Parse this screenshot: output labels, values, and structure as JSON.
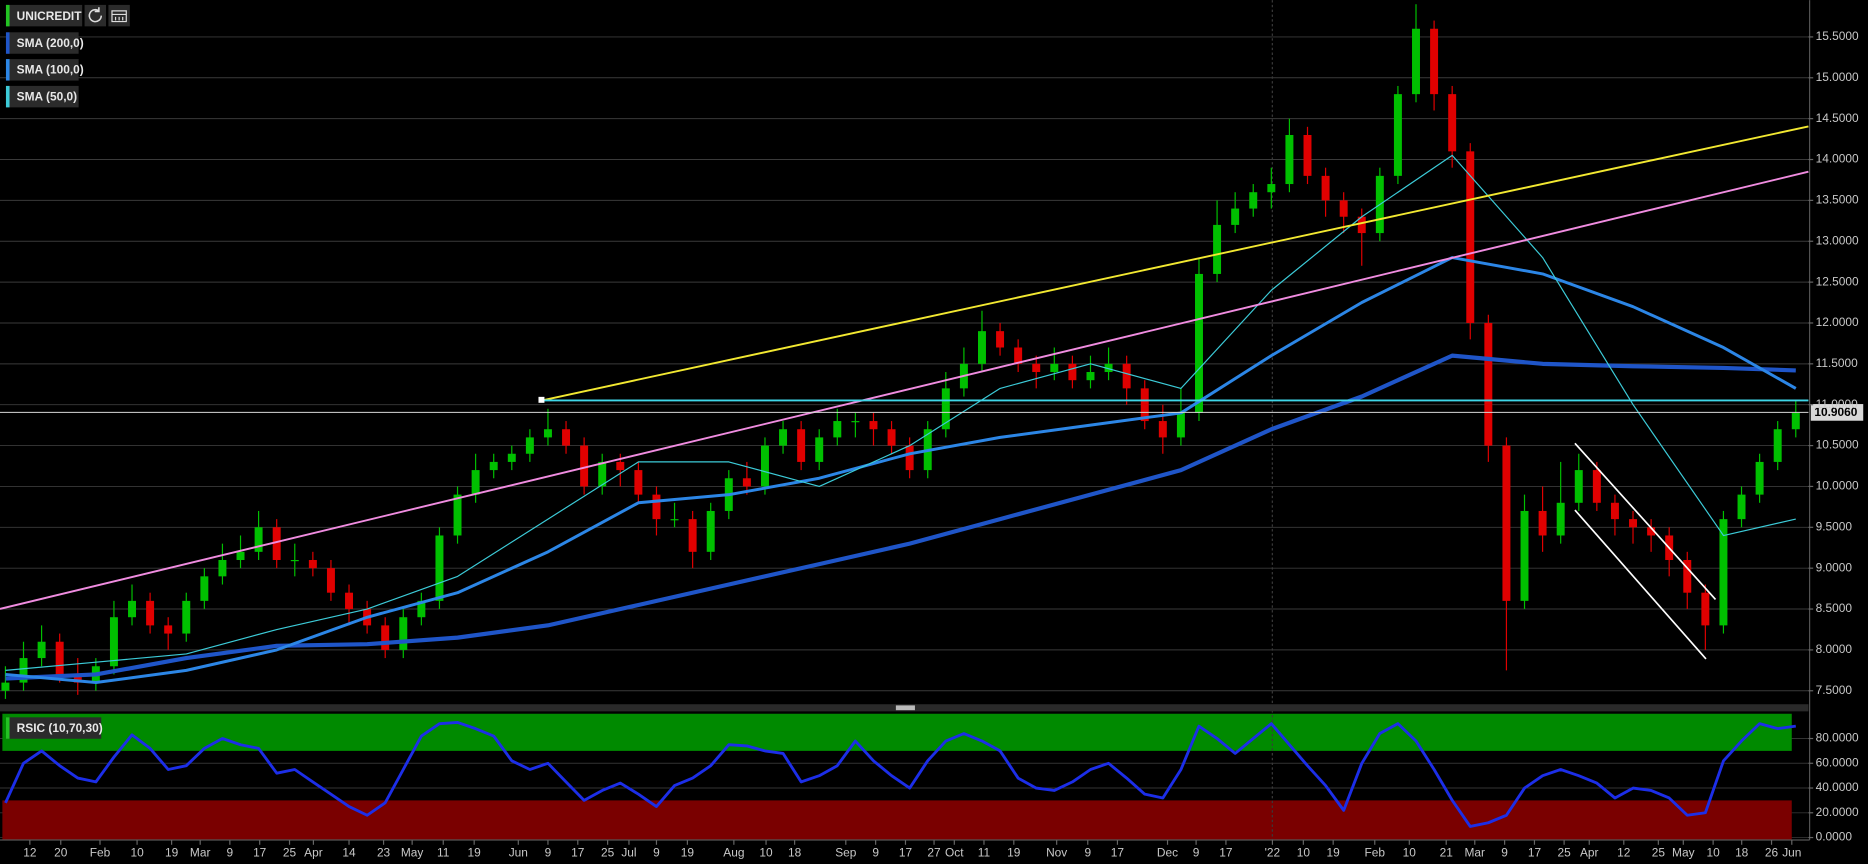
{
  "chart_data": [
    {
      "type": "candlestick",
      "title": "UNICREDIT",
      "xlim": [
        -0.3,
        99.7
      ],
      "ylim": [
        7.35,
        15.95
      ],
      "yticks": [
        {
          "value": 7.5,
          "label": "7.5000"
        },
        {
          "value": 8,
          "label": "8.0000"
        },
        {
          "value": 8.5,
          "label": "8.5000"
        },
        {
          "value": 9,
          "label": "9.0000"
        },
        {
          "value": 9.5,
          "label": "9.5000"
        },
        {
          "value": 10,
          "label": "10.0000"
        },
        {
          "value": 10.5,
          "label": "10.5000"
        },
        {
          "value": 11,
          "label": "11.0000"
        },
        {
          "value": 11.5,
          "label": "11.5000"
        },
        {
          "value": 12,
          "label": "12.0000"
        },
        {
          "value": 12.5,
          "label": "12.5000"
        },
        {
          "value": 13,
          "label": "13.0000"
        },
        {
          "value": 13.5,
          "label": "13.5000"
        },
        {
          "value": 14,
          "label": "14.0000"
        },
        {
          "value": 14.5,
          "label": "14.5000"
        },
        {
          "value": 15,
          "label": "15.0000"
        },
        {
          "value": 15.5,
          "label": "15.5000"
        }
      ],
      "xticks": [
        {
          "value": 1.35,
          "label": "12"
        },
        {
          "value": 3.06,
          "label": "20"
        },
        {
          "value": 5.23,
          "label": "Feb"
        },
        {
          "value": 7.28,
          "label": "10"
        },
        {
          "value": 9.19,
          "label": "19"
        },
        {
          "value": 10.77,
          "label": "Mar"
        },
        {
          "value": 12.41,
          "label": "9"
        },
        {
          "value": 14.06,
          "label": "17"
        },
        {
          "value": 15.71,
          "label": "25"
        },
        {
          "value": 17.03,
          "label": "Apr"
        },
        {
          "value": 19.0,
          "label": "14"
        },
        {
          "value": 20.91,
          "label": "23"
        },
        {
          "value": 22.49,
          "label": "May"
        },
        {
          "value": 24.21,
          "label": "11"
        },
        {
          "value": 25.92,
          "label": "19"
        },
        {
          "value": 28.36,
          "label": "Jun"
        },
        {
          "value": 30.0,
          "label": "9"
        },
        {
          "value": 31.65,
          "label": "17"
        },
        {
          "value": 33.3,
          "label": "25"
        },
        {
          "value": 34.48,
          "label": "Jul"
        },
        {
          "value": 36.0,
          "label": "9"
        },
        {
          "value": 37.71,
          "label": "19"
        },
        {
          "value": 40.28,
          "label": "Aug"
        },
        {
          "value": 42.06,
          "label": "10"
        },
        {
          "value": 43.64,
          "label": "18"
        },
        {
          "value": 46.47,
          "label": "Sep"
        },
        {
          "value": 48.12,
          "label": "9"
        },
        {
          "value": 49.77,
          "label": "17"
        },
        {
          "value": 51.35,
          "label": "27"
        },
        {
          "value": 52.47,
          "label": "Oct"
        },
        {
          "value": 54.11,
          "label": "11"
        },
        {
          "value": 55.76,
          "label": "19"
        },
        {
          "value": 58.13,
          "label": "Nov"
        },
        {
          "value": 59.85,
          "label": "9"
        },
        {
          "value": 61.49,
          "label": "17"
        },
        {
          "value": 64.26,
          "label": "Dec"
        },
        {
          "value": 65.84,
          "label": "9"
        },
        {
          "value": 67.49,
          "label": "17"
        },
        {
          "value": 70.06,
          "label": "'22"
        },
        {
          "value": 71.77,
          "label": "10"
        },
        {
          "value": 73.42,
          "label": "19"
        },
        {
          "value": 75.72,
          "label": "Feb"
        },
        {
          "value": 77.63,
          "label": "10"
        },
        {
          "value": 79.67,
          "label": "21"
        },
        {
          "value": 81.25,
          "label": "Mar"
        },
        {
          "value": 82.9,
          "label": "9"
        },
        {
          "value": 84.55,
          "label": "17"
        },
        {
          "value": 86.19,
          "label": "25"
        },
        {
          "value": 87.58,
          "label": "Apr"
        },
        {
          "value": 89.49,
          "label": "12"
        },
        {
          "value": 91.4,
          "label": "25"
        },
        {
          "value": 92.78,
          "label": "May"
        },
        {
          "value": 94.43,
          "label": "10"
        },
        {
          "value": 96.01,
          "label": "18"
        },
        {
          "value": 97.66,
          "label": "26"
        },
        {
          "value": 98.78,
          "label": "Jun"
        }
      ],
      "grid": true,
      "up_color": "#00c000",
      "down_color": "#e00000",
      "open": [
        7.5,
        7.6,
        7.9,
        8.1,
        7.7,
        7.6,
        7.8,
        8.4,
        8.6,
        8.3,
        8.2,
        8.6,
        8.9,
        9.1,
        9.2,
        9.5,
        9.1,
        9.1,
        9.0,
        8.7,
        8.5,
        8.3,
        8.0,
        8.4,
        8.6,
        9.4,
        9.9,
        10.2,
        10.3,
        10.4,
        10.6,
        10.7,
        10.5,
        10.0,
        10.3,
        10.2,
        9.9,
        9.6,
        9.6,
        9.2,
        9.7,
        10.1,
        10.0,
        10.5,
        10.7,
        10.3,
        10.6,
        10.8,
        10.8,
        10.7,
        10.5,
        10.2,
        10.7,
        11.2,
        11.5,
        11.9,
        11.7,
        11.5,
        11.4,
        11.5,
        11.3,
        11.4,
        11.5,
        11.2,
        10.8,
        10.6,
        10.9,
        12.6,
        13.2,
        13.4,
        13.6,
        13.7,
        14.3,
        13.8,
        13.5,
        13.3,
        13.1,
        13.8,
        14.8,
        15.6,
        14.8,
        14.1,
        12.0,
        10.5,
        8.6,
        9.7,
        9.4,
        9.8,
        10.2,
        9.8,
        9.6,
        9.5,
        9.4,
        9.1,
        8.7,
        8.3,
        9.6,
        9.9,
        10.3,
        10.7
      ],
      "high": [
        7.8,
        8.1,
        8.3,
        8.2,
        7.9,
        7.9,
        8.6,
        8.8,
        8.7,
        8.4,
        8.7,
        9.0,
        9.3,
        9.4,
        9.7,
        9.6,
        9.3,
        9.2,
        9.1,
        8.8,
        8.6,
        8.4,
        8.5,
        8.7,
        9.5,
        10.0,
        10.4,
        10.4,
        10.5,
        10.7,
        10.95,
        10.8,
        10.6,
        10.4,
        10.4,
        10.3,
        10.0,
        9.8,
        9.7,
        9.8,
        10.2,
        10.3,
        10.6,
        10.8,
        10.8,
        10.7,
        10.95,
        10.9,
        10.9,
        10.8,
        10.6,
        10.8,
        11.4,
        11.7,
        12.15,
        12.0,
        11.8,
        11.6,
        11.7,
        11.6,
        11.6,
        11.7,
        11.6,
        11.3,
        11.0,
        11.2,
        12.8,
        13.5,
        13.6,
        13.7,
        13.9,
        14.5,
        14.4,
        13.9,
        13.6,
        13.4,
        13.9,
        14.9,
        15.9,
        15.7,
        14.9,
        14.2,
        12.1,
        10.6,
        9.9,
        10.0,
        10.3,
        10.4,
        10.3,
        9.9,
        9.7,
        9.6,
        9.5,
        9.2,
        8.8,
        9.7,
        10.0,
        10.4,
        10.8,
        11.05
      ],
      "low": [
        7.4,
        7.5,
        7.8,
        7.6,
        7.45,
        7.5,
        7.7,
        8.3,
        8.2,
        8.0,
        8.1,
        8.5,
        8.8,
        9.0,
        9.1,
        9.0,
        8.9,
        8.9,
        8.6,
        8.3,
        8.2,
        7.9,
        7.9,
        8.3,
        8.5,
        9.3,
        9.8,
        10.1,
        10.2,
        10.3,
        10.5,
        10.4,
        9.9,
        9.9,
        10.0,
        9.8,
        9.4,
        9.5,
        9.0,
        9.1,
        9.6,
        9.9,
        9.9,
        10.4,
        10.2,
        10.2,
        10.5,
        10.6,
        10.5,
        10.4,
        10.1,
        10.1,
        10.6,
        11.1,
        11.4,
        11.6,
        11.4,
        11.2,
        11.3,
        11.2,
        11.2,
        11.3,
        11.0,
        10.7,
        10.4,
        10.5,
        10.8,
        12.5,
        13.1,
        13.3,
        13.4,
        13.6,
        13.7,
        13.3,
        13.1,
        12.7,
        13.0,
        13.7,
        14.7,
        14.6,
        13.9,
        11.8,
        10.3,
        7.75,
        8.5,
        9.2,
        9.3,
        9.7,
        9.7,
        9.4,
        9.3,
        9.2,
        8.9,
        8.5,
        8.0,
        8.2,
        9.5,
        9.8,
        10.2,
        10.6
      ],
      "close": [
        7.6,
        7.9,
        8.1,
        7.7,
        7.6,
        7.8,
        8.4,
        8.6,
        8.3,
        8.2,
        8.6,
        8.9,
        9.1,
        9.2,
        9.5,
        9.1,
        9.1,
        9.0,
        8.7,
        8.5,
        8.3,
        8.0,
        8.4,
        8.6,
        9.4,
        9.9,
        10.2,
        10.3,
        10.4,
        10.6,
        10.7,
        10.5,
        10.0,
        10.3,
        10.2,
        9.9,
        9.6,
        9.6,
        9.2,
        9.7,
        10.1,
        10.0,
        10.5,
        10.7,
        10.3,
        10.6,
        10.8,
        10.8,
        10.7,
        10.5,
        10.2,
        10.7,
        11.2,
        11.5,
        11.9,
        11.7,
        11.5,
        11.4,
        11.5,
        11.3,
        11.4,
        11.5,
        11.2,
        10.8,
        10.6,
        10.9,
        12.6,
        13.2,
        13.4,
        13.6,
        13.7,
        14.3,
        13.8,
        13.5,
        13.3,
        13.1,
        13.8,
        14.8,
        15.6,
        14.8,
        14.1,
        12.0,
        10.5,
        8.6,
        9.7,
        9.4,
        9.8,
        10.2,
        9.8,
        9.6,
        9.5,
        9.4,
        9.1,
        8.7,
        8.3,
        9.6,
        9.9,
        10.3,
        10.7,
        10.9
      ],
      "last_price": {
        "value": 10.906,
        "label": "10.9060"
      },
      "indicators": [
        {
          "name": "SMA (200,0)",
          "color": "#1f55c8",
          "width": 3.5,
          "x": [
            0,
            5,
            10,
            15,
            20,
            25,
            30,
            35,
            40,
            45,
            50,
            55,
            60,
            65,
            70,
            75,
            80,
            85,
            90,
            95,
            99
          ],
          "values": [
            7.65,
            7.7,
            7.9,
            8.05,
            8.07,
            8.15,
            8.3,
            8.55,
            8.8,
            9.05,
            9.3,
            9.6,
            9.9,
            10.2,
            10.7,
            11.1,
            11.6,
            11.5,
            11.47,
            11.45,
            11.42
          ]
        },
        {
          "name": "SMA (100,0)",
          "color": "#2c86e6",
          "width": 2.5,
          "x": [
            0,
            5,
            10,
            15,
            20,
            25,
            30,
            35,
            40,
            45,
            50,
            55,
            60,
            65,
            70,
            75,
            80,
            85,
            90,
            95,
            99
          ],
          "values": [
            7.7,
            7.6,
            7.75,
            8.0,
            8.4,
            8.7,
            9.2,
            9.8,
            9.9,
            10.1,
            10.4,
            10.6,
            10.75,
            10.9,
            11.6,
            12.25,
            12.8,
            12.6,
            12.2,
            11.7,
            11.2
          ]
        },
        {
          "name": "SMA (50,0)",
          "color": "#3ccbd8",
          "width": 1,
          "x": [
            0,
            5,
            10,
            15,
            20,
            25,
            30,
            35,
            40,
            45,
            50,
            55,
            60,
            65,
            70,
            75,
            80,
            85,
            90,
            95,
            99
          ],
          "values": [
            7.75,
            7.85,
            7.95,
            8.25,
            8.5,
            8.9,
            9.6,
            10.3,
            10.3,
            10.0,
            10.5,
            11.2,
            11.5,
            11.2,
            12.4,
            13.3,
            14.05,
            12.8,
            11.0,
            9.4,
            9.6
          ]
        }
      ]
    },
    {
      "type": "line",
      "title": "RSIC (10,70,30)",
      "color": "#1c2ee8",
      "ylim": [
        -2,
        100
      ],
      "upper": 70,
      "lower": 30,
      "upper_color": "#008a00",
      "lower_color": "#7a0000",
      "yticks": [
        {
          "value": 0,
          "label": "0.0000"
        },
        {
          "value": 20,
          "label": "20.0000"
        },
        {
          "value": 40,
          "label": "40.0000"
        },
        {
          "value": 60,
          "label": "60.0000"
        },
        {
          "value": 80,
          "label": "80.0000"
        }
      ],
      "values": [
        28,
        60,
        70,
        58,
        48,
        45,
        65,
        83,
        72,
        55,
        58,
        72,
        80,
        75,
        72,
        52,
        55,
        45,
        35,
        25,
        18,
        28,
        55,
        82,
        92,
        93,
        88,
        82,
        62,
        55,
        60,
        45,
        30,
        38,
        44,
        35,
        25,
        42,
        48,
        58,
        75,
        74,
        70,
        68,
        45,
        50,
        58,
        78,
        62,
        50,
        40,
        62,
        78,
        84,
        78,
        70,
        48,
        40,
        38,
        45,
        55,
        60,
        48,
        35,
        32,
        55,
        90,
        80,
        68,
        80,
        92,
        75,
        58,
        42,
        22,
        60,
        84,
        92,
        78,
        55,
        30,
        9,
        12,
        18,
        40,
        50,
        55,
        50,
        44,
        32,
        40,
        38,
        32,
        18,
        20,
        62,
        78,
        92,
        88,
        90
      ]
    }
  ]
}
